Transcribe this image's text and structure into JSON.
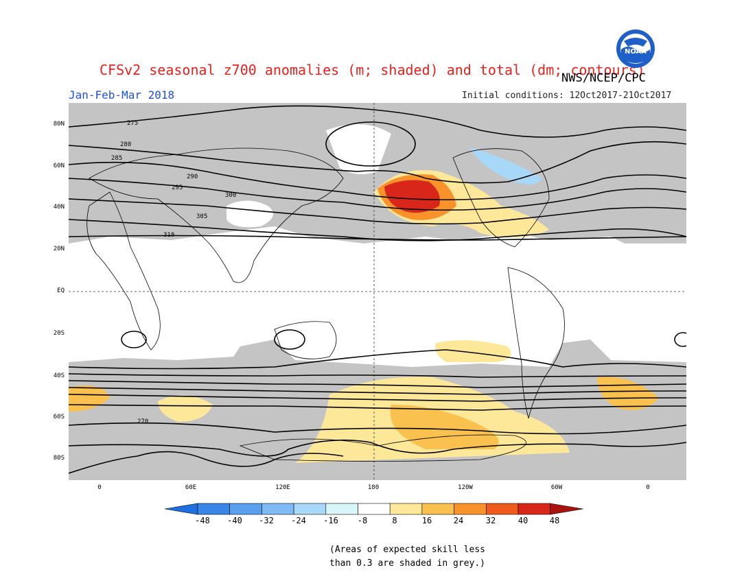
{
  "header": {
    "title": "CFSv2 seasonal z700 anomalies (m; shaded) and total (dm; contours)",
    "season": "Jan-Feb-Mar 2018",
    "organization": "NWS/NCEP/CPC",
    "initial_conditions": "Initial conditions: 12Oct2017-21Oct2017",
    "logo_text": "NOAA"
  },
  "map": {
    "lat_labels": [
      "80N",
      "60N",
      "40N",
      "20N",
      "EQ",
      "20S",
      "40S",
      "60S",
      "80S"
    ],
    "lon_labels": [
      "0",
      "60E",
      "120E",
      "180",
      "120W",
      "60W",
      "0"
    ],
    "contour_labels": [
      "275",
      "280",
      "285",
      "290",
      "295",
      "300",
      "305",
      "310",
      "270"
    ]
  },
  "colorbar": {
    "ticks": [
      "-48",
      "-40",
      "-32",
      "-24",
      "-16",
      "-8",
      "8",
      "16",
      "24",
      "32",
      "40",
      "48"
    ],
    "colors": [
      "#1e6fe0",
      "#3a86e8",
      "#5aa0ef",
      "#7fbaf5",
      "#a8d8f8",
      "#d8f5fa",
      "#ffffff",
      "#fde89a",
      "#fbc14e",
      "#f8932c",
      "#ef5b1c",
      "#d8261a",
      "#a8120f"
    ]
  },
  "colors": {
    "title": "#e8201e",
    "season": "#2050d8",
    "grey_mask": "#c4c4c4"
  },
  "footnote": {
    "line1": "(Areas of expected skill less",
    "line2": "than 0.3 are shaded in grey.)"
  }
}
